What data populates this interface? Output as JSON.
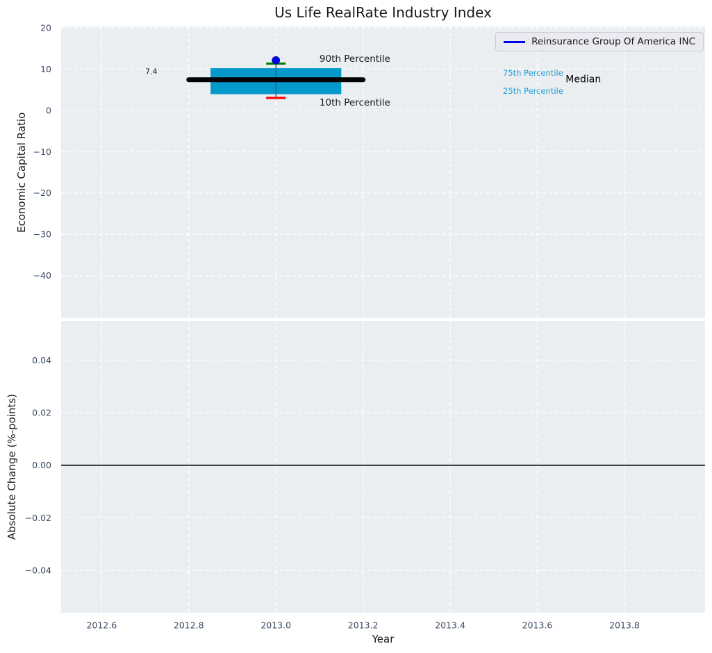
{
  "title": "Us Life RealRate Industry Index",
  "legend": {
    "label": "Reinsurance Group Of America INC",
    "line_color": "#0202f2"
  },
  "colors": {
    "figure_bg": "#ffffff",
    "axes_bg": "#eaeef0",
    "grid": "#ffffff",
    "tick_label": "#3b4a63",
    "axis_label": "#1a1a1a",
    "box_fill": "#0499cb",
    "whisker": "#2f2f2f",
    "median_line": "#000000",
    "cap_90th": "#008000",
    "cap_10th": "#fe0000",
    "company_dot": "#0000f0",
    "percentile_label_blue": "#189ed6",
    "annotation_black": "#1a1a1a",
    "zero_line": "#000000"
  },
  "chart_data": [
    {
      "type": "boxplot",
      "title": "Us Life RealRate Industry Index",
      "xlabel": "Year",
      "ylabel": "Economic Capital Ratio",
      "xlim": [
        2012.507,
        2013.985
      ],
      "ylim": [
        -50.3,
        20.3
      ],
      "grid": "white-dashed",
      "legend_position": "upper right",
      "xticks": [
        {
          "v": 2012.6,
          "label": "2012.6"
        },
        {
          "v": 2012.8,
          "label": "2012.8"
        },
        {
          "v": 2013.0,
          "label": "2013.0"
        },
        {
          "v": 2013.2,
          "label": "2013.2"
        },
        {
          "v": 2013.4,
          "label": "2013.4"
        },
        {
          "v": 2013.6,
          "label": "2013.6"
        },
        {
          "v": 2013.8,
          "label": "2013.8"
        }
      ],
      "show_xtick_labels": false,
      "yticks": [
        {
          "v": 20,
          "label": "20"
        },
        {
          "v": 10,
          "label": "10"
        },
        {
          "v": 0,
          "label": "0"
        },
        {
          "v": -10,
          "label": "−10"
        },
        {
          "v": -20,
          "label": "−20"
        },
        {
          "v": -30,
          "label": "−30"
        },
        {
          "v": -40,
          "label": "−40"
        }
      ],
      "series": [
        {
          "name": "Reinsurance Group Of America INC",
          "x": 2013.0,
          "median": 7.4,
          "q1": 3.9,
          "q3": 10.2,
          "p10": 3.0,
          "p90": 11.3,
          "company_value": 12.1,
          "box_halfwidth": 0.15,
          "median_halfwidth": 0.2,
          "cap_halfwidth": 0.016
        }
      ],
      "annotations": [
        {
          "text": "7.4",
          "x": 2012.714,
          "y": 9.4,
          "anchor": "middle",
          "color": "#1a1a1a",
          "size": 11
        },
        {
          "text": "90th Percentile",
          "x": 2013.1,
          "y": 12.4,
          "anchor": "start",
          "color": "#1a1a1a",
          "size": 13.5
        },
        {
          "text": "10th Percentile",
          "x": 2013.1,
          "y": 1.8,
          "anchor": "start",
          "color": "#1a1a1a",
          "size": 13.5
        },
        {
          "text": "75th Percentile",
          "x": 2013.521,
          "y": 9.0,
          "anchor": "start",
          "color": "#189ed6",
          "size": 11.5
        },
        {
          "text": "25th Percentile",
          "x": 2013.521,
          "y": 4.7,
          "anchor": "start",
          "color": "#189ed6",
          "size": 11.5
        },
        {
          "text": "Median",
          "x": 2013.665,
          "y": 7.4,
          "anchor": "start",
          "color": "#000000",
          "size": 14
        }
      ]
    },
    {
      "type": "line",
      "xlabel": "Year",
      "ylabel": "Absolute Change (%-points)",
      "xlim": [
        2012.507,
        2013.985
      ],
      "ylim": [
        -0.0561,
        0.0549
      ],
      "grid": "white-dashed",
      "xticks": [
        {
          "v": 2012.6,
          "label": "2012.6"
        },
        {
          "v": 2012.8,
          "label": "2012.8"
        },
        {
          "v": 2013.0,
          "label": "2013.0"
        },
        {
          "v": 2013.2,
          "label": "2013.2"
        },
        {
          "v": 2013.4,
          "label": "2013.4"
        },
        {
          "v": 2013.6,
          "label": "2013.6"
        },
        {
          "v": 2013.8,
          "label": "2013.8"
        }
      ],
      "show_xtick_labels": true,
      "yticks": [
        {
          "v": 0.04,
          "label": "0.04"
        },
        {
          "v": 0.02,
          "label": "0.02"
        },
        {
          "v": 0.0,
          "label": "0.00"
        },
        {
          "v": -0.02,
          "label": "−0.02"
        },
        {
          "v": -0.04,
          "label": "−0.04"
        }
      ],
      "zero_line_y": 0.0
    }
  ]
}
